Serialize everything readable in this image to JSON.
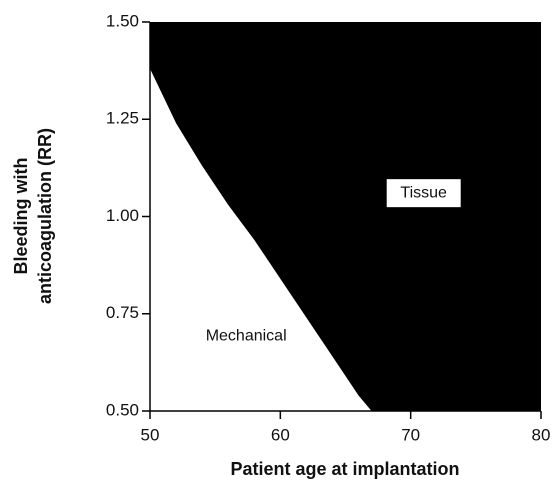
{
  "chart_data": {
    "type": "area",
    "x_label": "Patient age at implantation",
    "y_label": [
      "Bleeding with",
      "anticoagulation (RR)"
    ],
    "annotations": [
      "Tissue",
      "Mechanical"
    ],
    "x": [
      50,
      52,
      54,
      56,
      58,
      60,
      62,
      64,
      66,
      67
    ],
    "values": [
      1.38,
      1.24,
      1.13,
      1.03,
      0.94,
      0.84,
      0.74,
      0.64,
      0.54,
      0.5
    ],
    "color": "#000000",
    "xlim": [
      50,
      80
    ],
    "xticks": [
      50,
      60,
      70,
      80
    ],
    "ylim": [
      0.5,
      1.5
    ],
    "yticks": [
      {
        "value": 0.5,
        "label": "0.50"
      },
      {
        "value": 0.75,
        "label": "0.75"
      },
      {
        "value": 1.0,
        "label": "1.00"
      },
      {
        "value": 1.25,
        "label": "1.25"
      },
      {
        "value": 1.5,
        "label": "1.50"
      }
    ]
  }
}
